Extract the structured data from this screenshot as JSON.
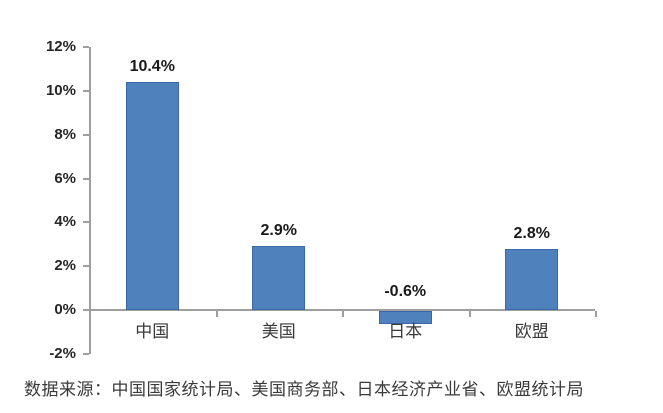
{
  "chart_data": {
    "type": "bar",
    "title": "",
    "xlabel": "",
    "ylabel": "",
    "categories": [
      "中国",
      "美国",
      "日本",
      "欧盟"
    ],
    "values": [
      10.4,
      2.9,
      -0.6,
      2.8
    ],
    "value_labels": [
      "10.4%",
      "2.9%",
      "-0.6%",
      "2.8%"
    ],
    "ylim": [
      -2,
      12
    ],
    "y_ticks": [
      12,
      10,
      8,
      6,
      4,
      2,
      0,
      -2
    ],
    "y_tick_labels": [
      "12%",
      "10%",
      "8%",
      "6%",
      "4%",
      "2%",
      "0%",
      "-2%"
    ],
    "grid": false,
    "legend": null,
    "bar_color": "#4F81BD",
    "bar_border_color": "#3A68A6",
    "axis_color": "#9E9E9E",
    "tick_label_color": "#262626",
    "value_label_color": "#1a1a1a",
    "category_label_color": "#3a3a3a"
  },
  "footer": {
    "source_note": "数据来源：中国国家统计局、美国商务部、日本经济产业省、欧盟统计局"
  }
}
